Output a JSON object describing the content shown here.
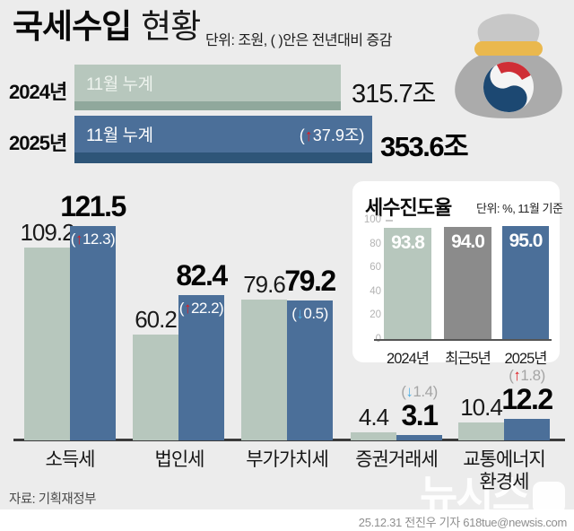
{
  "header": {
    "title_strong": "국세수입",
    "title_light": "현황",
    "unit_note": "단위: 조원, ( )안은 전년대비 증감"
  },
  "summary": {
    "rows": [
      {
        "year": "2024년",
        "bar_label": "11월 누계",
        "value": "315.7조"
      },
      {
        "year": "2025년",
        "bar_label": "11월 누계",
        "value": "353.6조",
        "change": {
          "open": "(",
          "arrow": "↑",
          "value": "37.9조",
          "close": ")",
          "dir": "up"
        }
      }
    ]
  },
  "main_chart": {
    "groups": [
      {
        "label": "소득세",
        "v2024": "109.2",
        "v2025": "121.5",
        "change": {
          "open": "(",
          "arrow": "↑",
          "value": "12.3",
          "close": ")",
          "dir": "up"
        }
      },
      {
        "label": "법인세",
        "v2024": "60.2",
        "v2025": "82.4",
        "change": {
          "open": "(",
          "arrow": "↑",
          "value": "22.2",
          "close": ")",
          "dir": "up"
        }
      },
      {
        "label": "부가가치세",
        "v2024": "79.6",
        "v2025": "79.2",
        "change": {
          "open": "(",
          "arrow": "↓",
          "value": "0.5",
          "close": ")",
          "dir": "down"
        }
      },
      {
        "label": "증권거래세",
        "v2024": "4.4",
        "v2025": "3.1",
        "change": {
          "open": "(",
          "arrow": "↓",
          "value": "1.4",
          "close": ")",
          "dir": "down"
        }
      },
      {
        "label": "교통에너지",
        "label2": "환경세",
        "v2024": "10.4",
        "v2025": "12.2",
        "change": {
          "open": "(",
          "arrow": "↑",
          "value": "1.8",
          "close": ")",
          "dir": "up"
        }
      }
    ]
  },
  "inset": {
    "title": "세수진도율",
    "unit_note": "단위: %, 11월 기준",
    "yticks": [
      "100",
      "80",
      "60",
      "40",
      "20",
      "0"
    ],
    "bars": [
      {
        "label": "2024년",
        "value": "93.8"
      },
      {
        "label": "최근5년",
        "value": "94.0"
      },
      {
        "label": "2025년",
        "value": "95.0"
      }
    ]
  },
  "footer": {
    "source": "자료: 기획재정부",
    "watermark": "뉴시스",
    "credit": "25.12.31 전진우 기자 618tue@newsis.com"
  },
  "colors": {
    "background": "#ececec",
    "bar_2024_green": "#b7c7bd",
    "bar_2024_green_edge": "#90a89c",
    "bar_2025_blue": "#4b6f99",
    "bar_2025_blue_edge": "#2e5578",
    "bar_recent5yr_gray": "#8b8b8b",
    "arrow_up_red": "#e01a1f",
    "arrow_down_blue": "#4fb0e5",
    "annotation_gray": "#a5a5a5"
  },
  "chart_data": [
    {
      "type": "bar",
      "title": "국세수입 현황",
      "unit": "조원",
      "note": "( )안은 전년대비 증감",
      "categories": [
        "소득세",
        "법인세",
        "부가가치세",
        "증권거래세",
        "교통에너지환경세"
      ],
      "series": [
        {
          "name": "2024년 11월 누계",
          "values": [
            109.2,
            60.2,
            79.6,
            4.4,
            10.4
          ]
        },
        {
          "name": "2025년 11월 누계",
          "values": [
            121.5,
            82.4,
            79.2,
            3.1,
            12.2
          ]
        }
      ],
      "changes_vs_prev_year": [
        12.3,
        22.2,
        -0.5,
        -1.4,
        1.8
      ],
      "totals": {
        "labels": [
          "2024년 11월 누계",
          "2025년 11월 누계"
        ],
        "values": [
          315.7,
          353.6
        ],
        "total_change": 37.9
      },
      "legend_position": "none",
      "grid": false
    },
    {
      "type": "bar",
      "title": "세수진도율",
      "unit": "%, 11월 기준",
      "categories": [
        "2024년",
        "최근5년",
        "2025년"
      ],
      "values": [
        93.8,
        94.0,
        95.0
      ],
      "ylim": [
        0,
        100
      ],
      "yticks": [
        0,
        20,
        40,
        60,
        80,
        100
      ],
      "grid": false
    }
  ]
}
